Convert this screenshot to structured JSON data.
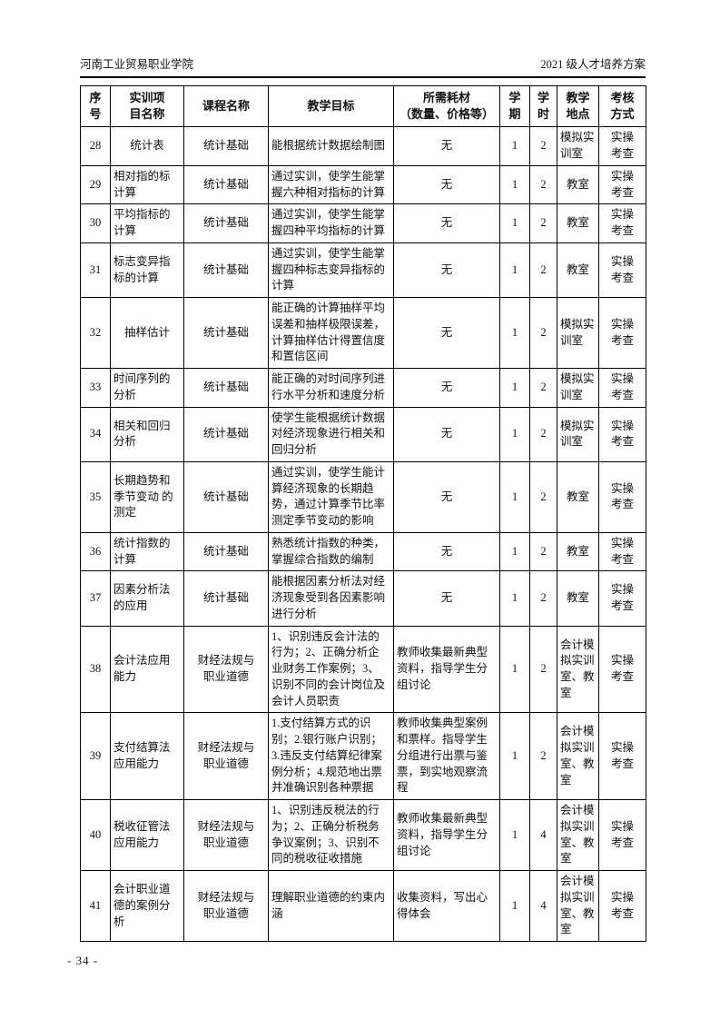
{
  "page": {
    "header_left": "河南工业贸易职业学院",
    "header_right": "2021 级人才培养方案",
    "footer_page_number": "- 34 -"
  },
  "table": {
    "columns": [
      {
        "label": "序\n号"
      },
      {
        "label": "实训项\n目名称"
      },
      {
        "label": "课程名称"
      },
      {
        "label": "教学目标"
      },
      {
        "label": "所需耗材\n（数量、价格等）"
      },
      {
        "label": "学\n期"
      },
      {
        "label": "学\n时"
      },
      {
        "label": "教学\n地点"
      },
      {
        "label": "考核\n方式"
      }
    ],
    "rows": [
      {
        "no": "28",
        "project": "统计表",
        "course": "统计基础",
        "goal": "能根据统计数据绘制图",
        "materials": "无",
        "semester": "1",
        "hours": "2",
        "location": "模拟实训室",
        "assessment": "实操考查"
      },
      {
        "no": "29",
        "project": "相对指的标计算",
        "course": "统计基础",
        "goal": "通过实训，使学生能掌握六种相对指标的计算",
        "materials": "无",
        "semester": "1",
        "hours": "2",
        "location": "教室",
        "assessment": "实操考查"
      },
      {
        "no": "30",
        "project": "平均指标的计算",
        "course": "统计基础",
        "goal": "通过实训，使学生能掌握四种平均指标的计算",
        "materials": "无",
        "semester": "1",
        "hours": "2",
        "location": "教室",
        "assessment": "实操考查"
      },
      {
        "no": "31",
        "project": "标志变异指标的计算",
        "course": "统计基础",
        "goal": "通过实训，使学生能掌握四种标志变异指标的计算",
        "materials": "无",
        "semester": "1",
        "hours": "2",
        "location": "教室",
        "assessment": "实操考查"
      },
      {
        "no": "32",
        "project": "抽样估计",
        "course": "统计基础",
        "goal": "能正确的计算抽样平均误差和抽样极限误差，计算抽样估计得置信度和置信区间",
        "materials": "无",
        "semester": "1",
        "hours": "2",
        "location": "模拟实训室",
        "assessment": "实操考查"
      },
      {
        "no": "33",
        "project": "时间序列的分析",
        "course": "统计基础",
        "goal": "能正确的对时间序列进行水平分析和速度分析",
        "materials": "无",
        "semester": "1",
        "hours": "2",
        "location": "模拟实训室",
        "assessment": "实操考查"
      },
      {
        "no": "34",
        "project": "相关和回归分析",
        "course": "统计基础",
        "goal": "使学生能根据统计数据对经济现象进行相关和回归分析",
        "materials": "无",
        "semester": "1",
        "hours": "2",
        "location": "模拟实训室",
        "assessment": "实操考查"
      },
      {
        "no": "35",
        "project": "长期趋势和季节变动 的测定",
        "course": "统计基础",
        "goal": "通过实训，使学生能计算经济现象的长期趋势，通过计算季节比率测定季节变动的影响",
        "materials": "无",
        "semester": "1",
        "hours": "2",
        "location": "教室",
        "assessment": "实操考查"
      },
      {
        "no": "36",
        "project": "统计指数的计算",
        "course": "统计基础",
        "goal": "熟悉统计指数的种类，掌握综合指数的编制",
        "materials": "无",
        "semester": "1",
        "hours": "2",
        "location": "教室",
        "assessment": "实操考查"
      },
      {
        "no": "37",
        "project": "因素分析法的应用",
        "course": "统计基础",
        "goal": "能根据因素分析法对经济现象受到各因素影响进行分析",
        "materials": "无",
        "semester": "1",
        "hours": "2",
        "location": "教室",
        "assessment": "实操考查"
      },
      {
        "no": "38",
        "project": "会计法应用能力",
        "course": "财经法规与职业道德",
        "goal": "1、识别违反会计法的行为；2、正确分析企业财务工作案例；3、识别不同的会计岗位及会计人员职责",
        "materials": "教师收集最新典型资料，指导学生分组讨论",
        "semester": "1",
        "hours": "2",
        "location": "会计模拟实训室、教室",
        "assessment": "实操考查"
      },
      {
        "no": "39",
        "project": "支付结算法应用能力",
        "course": "财经法规与职业道德",
        "goal": "1.支付结算方式的识别；2.银行账户识别；3.违反支付结算纪律案例分析；4.规范地出票并准确识别各种票据",
        "materials": "教师收集典型案例和票样。指导学生分组进行出票与鉴票，到实地观察流程",
        "semester": "1",
        "hours": "2",
        "location": "会计模拟实训室、教室",
        "assessment": "实操考查"
      },
      {
        "no": "40",
        "project": "税收征管法应用能力",
        "course": "财经法规与职业道德",
        "goal": "1、识别违反税法的行为；2、正确分析税务争议案例；3、识别不同的税收征收措施",
        "materials": "教师收集最新典型资料，指导学生分组讨论",
        "semester": "1",
        "hours": "4",
        "location": "会计模拟实训室、教室",
        "assessment": "实操考查"
      },
      {
        "no": "41",
        "project": "会计职业道德的案例分析",
        "course": "财经法规与职业道德",
        "goal": "理解职业道德的约束内涵",
        "materials": "收集资料，写出心得体会",
        "semester": "1",
        "hours": "4",
        "location": "会计模拟实训室、教室",
        "assessment": "实操考查"
      }
    ]
  }
}
